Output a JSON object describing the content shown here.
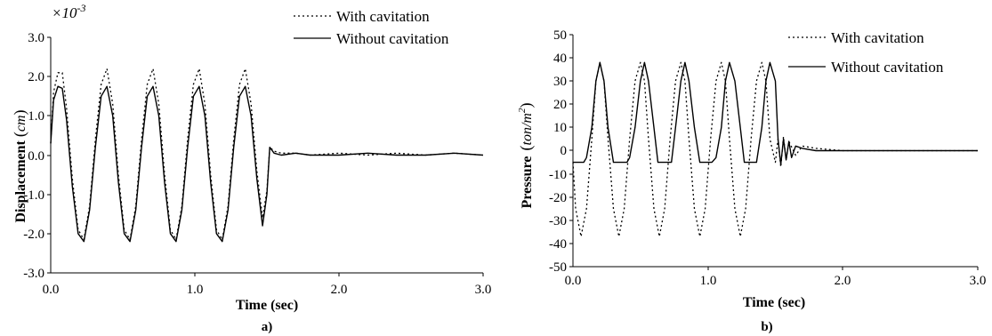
{
  "chart_data": [
    {
      "type": "line",
      "panel_label": "a)",
      "xlabel": "Time (sec)",
      "ylabel_text": "Displacement",
      "ylabel_unit": "cm",
      "y_multiplier_base": "×10",
      "y_multiplier_exp": "-3",
      "xlim": [
        0,
        3
      ],
      "ylim": [
        -3,
        3
      ],
      "x_ticks": [
        "0.0",
        "1.0",
        "2.0",
        "3.0"
      ],
      "y_ticks": [
        "3.0",
        "2.0",
        "1.0",
        "0.0",
        "-1.0",
        "-2.0",
        "-3.0"
      ],
      "legend": [
        "With cavitation",
        "Without cavitation"
      ],
      "legend_position": "top-right",
      "series": [
        {
          "name": "With cavitation",
          "style": "dotted",
          "x": [
            0.0,
            0.02,
            0.05,
            0.08,
            0.11,
            0.15,
            0.19,
            0.23,
            0.27,
            0.31,
            0.35,
            0.39,
            0.43,
            0.47,
            0.51,
            0.55,
            0.59,
            0.63,
            0.67,
            0.71,
            0.75,
            0.79,
            0.83,
            0.87,
            0.91,
            0.95,
            0.99,
            1.03,
            1.07,
            1.11,
            1.15,
            1.19,
            1.23,
            1.27,
            1.31,
            1.35,
            1.39,
            1.43,
            1.47,
            1.5,
            1.52,
            1.55,
            1.6,
            1.7,
            1.8,
            2.0,
            2.2,
            2.4,
            2.6,
            2.8,
            3.0
          ],
          "y": [
            0.3,
            1.6,
            2.1,
            2.1,
            1.2,
            -0.6,
            -1.9,
            -2.15,
            -1.3,
            0.4,
            1.8,
            2.2,
            1.3,
            -0.5,
            -1.9,
            -2.15,
            -1.3,
            0.4,
            1.8,
            2.2,
            1.3,
            -0.5,
            -1.9,
            -2.15,
            -1.3,
            0.4,
            1.8,
            2.2,
            1.3,
            -0.5,
            -1.9,
            -2.15,
            -1.3,
            0.4,
            1.8,
            2.2,
            1.3,
            -0.4,
            -1.6,
            -0.9,
            0.2,
            0.1,
            0.05,
            0.05,
            0.0,
            0.05,
            0.0,
            0.05,
            0.0,
            0.05,
            0.0
          ]
        },
        {
          "name": "Without cavitation",
          "style": "solid",
          "x": [
            0.0,
            0.02,
            0.05,
            0.08,
            0.11,
            0.15,
            0.19,
            0.23,
            0.27,
            0.31,
            0.35,
            0.39,
            0.43,
            0.47,
            0.51,
            0.55,
            0.59,
            0.63,
            0.67,
            0.71,
            0.75,
            0.79,
            0.83,
            0.87,
            0.91,
            0.95,
            0.99,
            1.03,
            1.07,
            1.11,
            1.15,
            1.19,
            1.23,
            1.27,
            1.31,
            1.35,
            1.39,
            1.43,
            1.47,
            1.5,
            1.52,
            1.55,
            1.6,
            1.7,
            1.8,
            2.0,
            2.2,
            2.4,
            2.6,
            2.8,
            3.0
          ],
          "y": [
            0.3,
            1.4,
            1.75,
            1.7,
            0.9,
            -0.8,
            -2.0,
            -2.2,
            -1.4,
            0.2,
            1.5,
            1.75,
            1.0,
            -0.7,
            -2.0,
            -2.2,
            -1.4,
            0.2,
            1.5,
            1.75,
            1.0,
            -0.7,
            -2.0,
            -2.2,
            -1.4,
            0.2,
            1.5,
            1.75,
            1.0,
            -0.7,
            -2.0,
            -2.2,
            -1.4,
            0.2,
            1.5,
            1.75,
            1.0,
            -0.6,
            -1.8,
            -1.0,
            0.2,
            0.05,
            0.0,
            0.05,
            0.0,
            0.0,
            0.05,
            0.0,
            0.0,
            0.05,
            0.0
          ]
        }
      ]
    },
    {
      "type": "line",
      "panel_label": "b)",
      "xlabel": "Time (sec)",
      "ylabel_text": "Pressure",
      "ylabel_unit": "ton/m",
      "ylabel_unit_exp": "2",
      "xlim": [
        0,
        3
      ],
      "ylim": [
        -50,
        50
      ],
      "x_ticks": [
        "0.0",
        "1.0",
        "2.0",
        "3.0"
      ],
      "y_ticks": [
        "50",
        "40",
        "30",
        "20",
        "10",
        "0",
        "-10",
        "-20",
        "-30",
        "-40",
        "-50"
      ],
      "legend": [
        "With cavitation",
        "Without cavitation"
      ],
      "legend_position": "top-right",
      "series": [
        {
          "name": "With cavitation",
          "style": "dotted",
          "x": [
            0.0,
            0.02,
            0.06,
            0.1,
            0.14,
            0.17,
            0.2,
            0.23,
            0.26,
            0.3,
            0.34,
            0.38,
            0.42,
            0.46,
            0.5,
            0.53,
            0.56,
            0.6,
            0.64,
            0.68,
            0.72,
            0.76,
            0.8,
            0.83,
            0.86,
            0.9,
            0.94,
            0.98,
            1.02,
            1.06,
            1.1,
            1.13,
            1.16,
            1.2,
            1.24,
            1.28,
            1.32,
            1.36,
            1.4,
            1.43,
            1.46,
            1.5,
            1.52,
            1.54,
            1.56,
            1.58,
            1.6,
            1.65,
            1.7,
            1.8,
            2.0,
            2.5,
            3.0
          ],
          "y": [
            -5,
            -25,
            -37,
            -25,
            5,
            30,
            38,
            30,
            5,
            -25,
            -37,
            -25,
            5,
            30,
            38,
            30,
            5,
            -25,
            -37,
            -25,
            5,
            30,
            38,
            30,
            5,
            -25,
            -37,
            -25,
            5,
            30,
            38,
            30,
            5,
            -25,
            -37,
            -25,
            5,
            30,
            38,
            30,
            5,
            -5,
            5,
            -7,
            6,
            -4,
            4,
            -2,
            2,
            1,
            0,
            0,
            0
          ]
        },
        {
          "name": "Without cavitation",
          "style": "solid",
          "x": [
            0.0,
            0.04,
            0.08,
            0.1,
            0.14,
            0.17,
            0.2,
            0.23,
            0.26,
            0.3,
            0.33,
            0.36,
            0.4,
            0.42,
            0.46,
            0.5,
            0.53,
            0.56,
            0.6,
            0.63,
            0.66,
            0.7,
            0.73,
            0.76,
            0.8,
            0.83,
            0.86,
            0.9,
            0.94,
            0.97,
            1.0,
            1.03,
            1.06,
            1.1,
            1.13,
            1.16,
            1.2,
            1.24,
            1.27,
            1.3,
            1.33,
            1.36,
            1.4,
            1.43,
            1.46,
            1.5,
            1.52,
            1.54,
            1.56,
            1.58,
            1.6,
            1.62,
            1.65,
            1.7,
            1.8,
            2.0,
            2.5,
            3.0
          ],
          "y": [
            -5,
            -5,
            -5,
            -3,
            10,
            30,
            38,
            30,
            10,
            -5,
            -5,
            -5,
            -5,
            -3,
            10,
            30,
            38,
            30,
            10,
            -5,
            -5,
            -5,
            -5,
            10,
            30,
            38,
            30,
            10,
            -5,
            -5,
            -5,
            -5,
            -3,
            10,
            30,
            38,
            30,
            10,
            -5,
            -5,
            -5,
            -5,
            10,
            30,
            38,
            30,
            5,
            -6,
            5,
            -4,
            4,
            -3,
            2,
            1,
            0,
            0,
            0,
            0
          ]
        }
      ]
    }
  ]
}
